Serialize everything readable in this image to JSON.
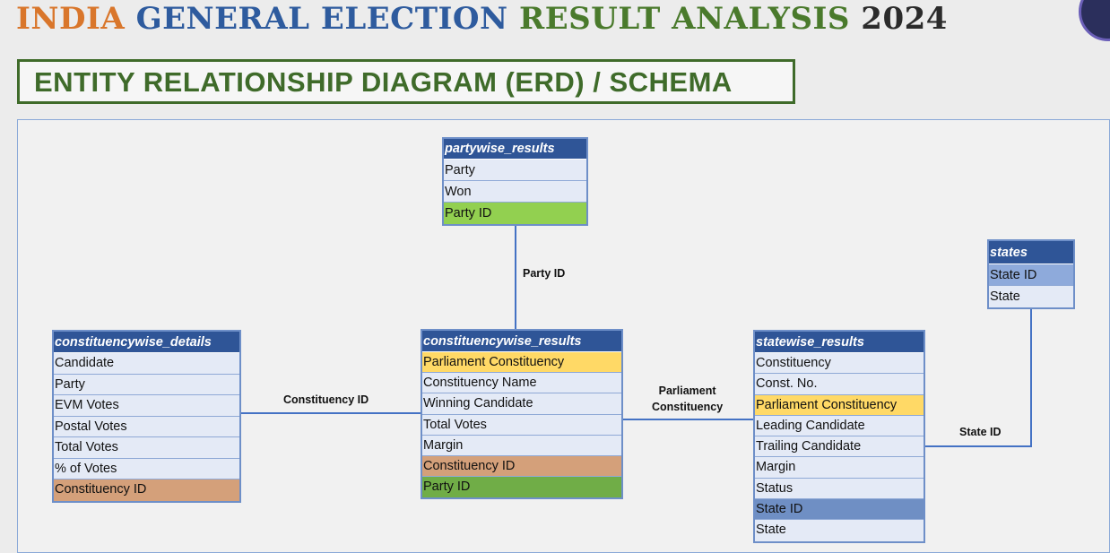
{
  "header": {
    "title_parts": [
      {
        "text": "INDIA ",
        "color": "#d9762b"
      },
      {
        "text": "GENERAL ELECTION ",
        "color": "#2e5b9e"
      },
      {
        "text": "RESULT ANALYSIS ",
        "color": "#4a7a2c"
      },
      {
        "text": "2024",
        "color": "#2b2b2b"
      }
    ],
    "subtitle": "ENTITY RELATIONSHIP DIAGRAM (ERD) / SCHEMA"
  },
  "tables": {
    "partywise_results": {
      "name": "partywise_results",
      "fields": [
        {
          "text": "Party",
          "color": "#e4eaf6"
        },
        {
          "text": "Won",
          "color": "#e4eaf6"
        },
        {
          "text": "Party ID",
          "color": "#92d050"
        }
      ]
    },
    "states": {
      "name": "states",
      "fields": [
        {
          "text": "State ID",
          "color": "#8eaadb"
        },
        {
          "text": "State",
          "color": "#e4eaf6"
        }
      ]
    },
    "constituencywise_details": {
      "name": "constituencywise_details",
      "fields": [
        {
          "text": "Candidate",
          "color": "#e4eaf6"
        },
        {
          "text": "Party",
          "color": "#e4eaf6"
        },
        {
          "text": "EVM Votes",
          "color": "#e4eaf6"
        },
        {
          "text": "Postal Votes",
          "color": "#e4eaf6"
        },
        {
          "text": "Total Votes",
          "color": "#e4eaf6"
        },
        {
          "text": "% of Votes",
          "color": "#e4eaf6"
        },
        {
          "text": "Constituency ID",
          "color": "#d4a07a"
        }
      ]
    },
    "constituencywise_results": {
      "name": "constituencywise_results",
      "fields": [
        {
          "text": "Parliament Constituency",
          "color": "#ffd966"
        },
        {
          "text": "Constituency Name",
          "color": "#e4eaf6"
        },
        {
          "text": "Winning Candidate",
          "color": "#e4eaf6"
        },
        {
          "text": "Total Votes",
          "color": "#e4eaf6"
        },
        {
          "text": "Margin",
          "color": "#e4eaf6"
        },
        {
          "text": "Constituency ID",
          "color": "#d4a07a"
        },
        {
          "text": "Party ID",
          "color": "#70ad47"
        }
      ]
    },
    "statewise_results": {
      "name": "statewise_results",
      "fields": [
        {
          "text": "Constituency",
          "color": "#e4eaf6"
        },
        {
          "text": "Const. No.",
          "color": "#e4eaf6"
        },
        {
          "text": "Parliament Constituency",
          "color": "#ffd966"
        },
        {
          "text": "Leading Candidate",
          "color": "#e4eaf6"
        },
        {
          "text": "Trailing Candidate",
          "color": "#e4eaf6"
        },
        {
          "text": "Margin",
          "color": "#e4eaf6"
        },
        {
          "text": "Status",
          "color": "#e4eaf6"
        },
        {
          "text": "State ID",
          "color": "#6f8fc4"
        },
        {
          "text": "State",
          "color": "#e4eaf6"
        }
      ]
    }
  },
  "relationships": {
    "party_id": "Party ID",
    "constituency_id": "Constituency ID",
    "parliament_constituency": "Parliament\nConstituency",
    "state_id": "State ID"
  },
  "colors": {
    "header_blue": "#2f5597",
    "line_blue": "#4472c4",
    "frame_green": "#3f6b2a"
  }
}
